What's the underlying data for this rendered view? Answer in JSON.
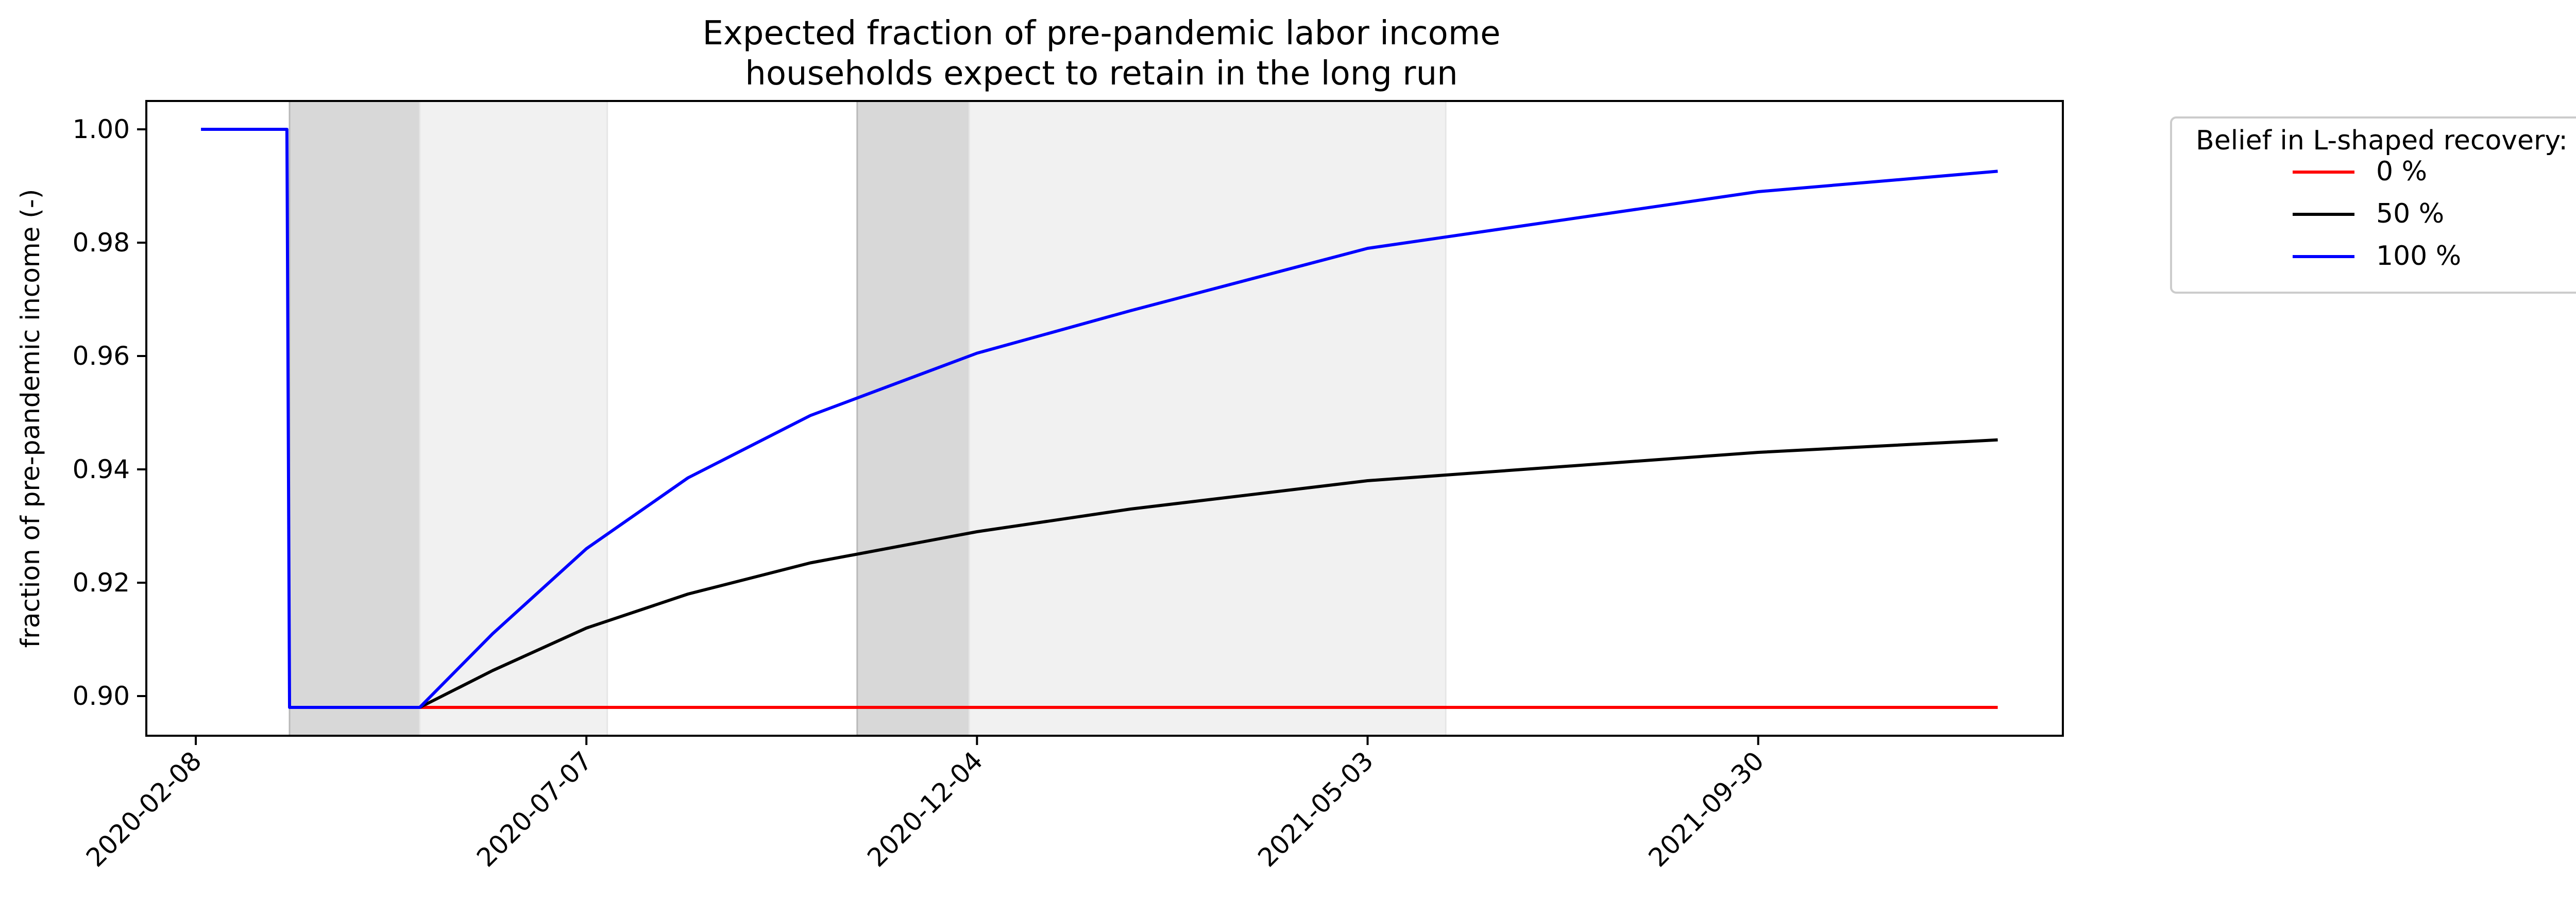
{
  "chart_data": {
    "type": "line",
    "title": "Expected fraction of pre-pandemic labor income",
    "subtitle": "households expect to retain in the long run",
    "xlabel": "",
    "ylabel": "fraction of pre-pandemic income (-)",
    "x_type": "date",
    "xlim": [
      "2020-01-20",
      "2022-01-25"
    ],
    "ylim": [
      0.893,
      1.005
    ],
    "x_ticks": [
      "2020-02-08",
      "2020-07-07",
      "2020-12-04",
      "2021-05-03",
      "2021-09-30"
    ],
    "y_ticks": [
      0.9,
      0.92,
      0.94,
      0.96,
      0.98,
      1.0
    ],
    "y_tick_labels": [
      "0.90",
      "0.92",
      "0.94",
      "0.96",
      "0.98",
      "1.00"
    ],
    "grid": false,
    "shaded_periods": [
      {
        "start": "2020-03-15",
        "end": "2020-05-04",
        "shade": "dark",
        "color": "#d8d8d8"
      },
      {
        "start": "2020-05-04",
        "end": "2020-07-15",
        "shade": "light",
        "color": "#f1f1f1"
      },
      {
        "start": "2020-10-19",
        "end": "2020-12-01",
        "shade": "dark",
        "color": "#d8d8d8"
      },
      {
        "start": "2020-12-01",
        "end": "2021-06-02",
        "shade": "light",
        "color": "#f1f1f1"
      }
    ],
    "legend": {
      "title": "Belief in L-shaped recovery:",
      "placement": "outside-right-top",
      "entries": [
        "0 %",
        "50 %",
        "100 %"
      ]
    },
    "series": [
      {
        "name": "0 %",
        "color": "#ff0000",
        "x": [
          "2020-03-15",
          "2020-05-04",
          "2020-12-04",
          "2021-05-03",
          "2021-09-30",
          "2021-12-31"
        ],
        "y": [
          0.898,
          0.898,
          0.898,
          0.898,
          0.898,
          0.898
        ]
      },
      {
        "name": "50 %",
        "color": "#000000",
        "x": [
          "2020-03-15",
          "2020-05-04",
          "2020-06-01",
          "2020-07-07",
          "2020-08-15",
          "2020-10-01",
          "2020-12-04",
          "2021-02-01",
          "2021-05-03",
          "2021-09-30",
          "2021-12-31"
        ],
        "y": [
          0.898,
          0.898,
          0.9045,
          0.912,
          0.918,
          0.9235,
          0.929,
          0.933,
          0.938,
          0.943,
          0.9452
        ]
      },
      {
        "name": "100 %",
        "color": "#0000ff",
        "x": [
          "2020-02-10",
          "2020-03-14",
          "2020-03-15",
          "2020-05-04",
          "2020-06-01",
          "2020-07-07",
          "2020-08-15",
          "2020-10-01",
          "2020-12-04",
          "2021-02-01",
          "2021-05-03",
          "2021-09-30",
          "2021-12-31"
        ],
        "y": [
          1.0,
          1.0,
          0.898,
          0.898,
          0.911,
          0.926,
          0.9385,
          0.9495,
          0.9605,
          0.968,
          0.979,
          0.989,
          0.9926
        ]
      }
    ]
  }
}
